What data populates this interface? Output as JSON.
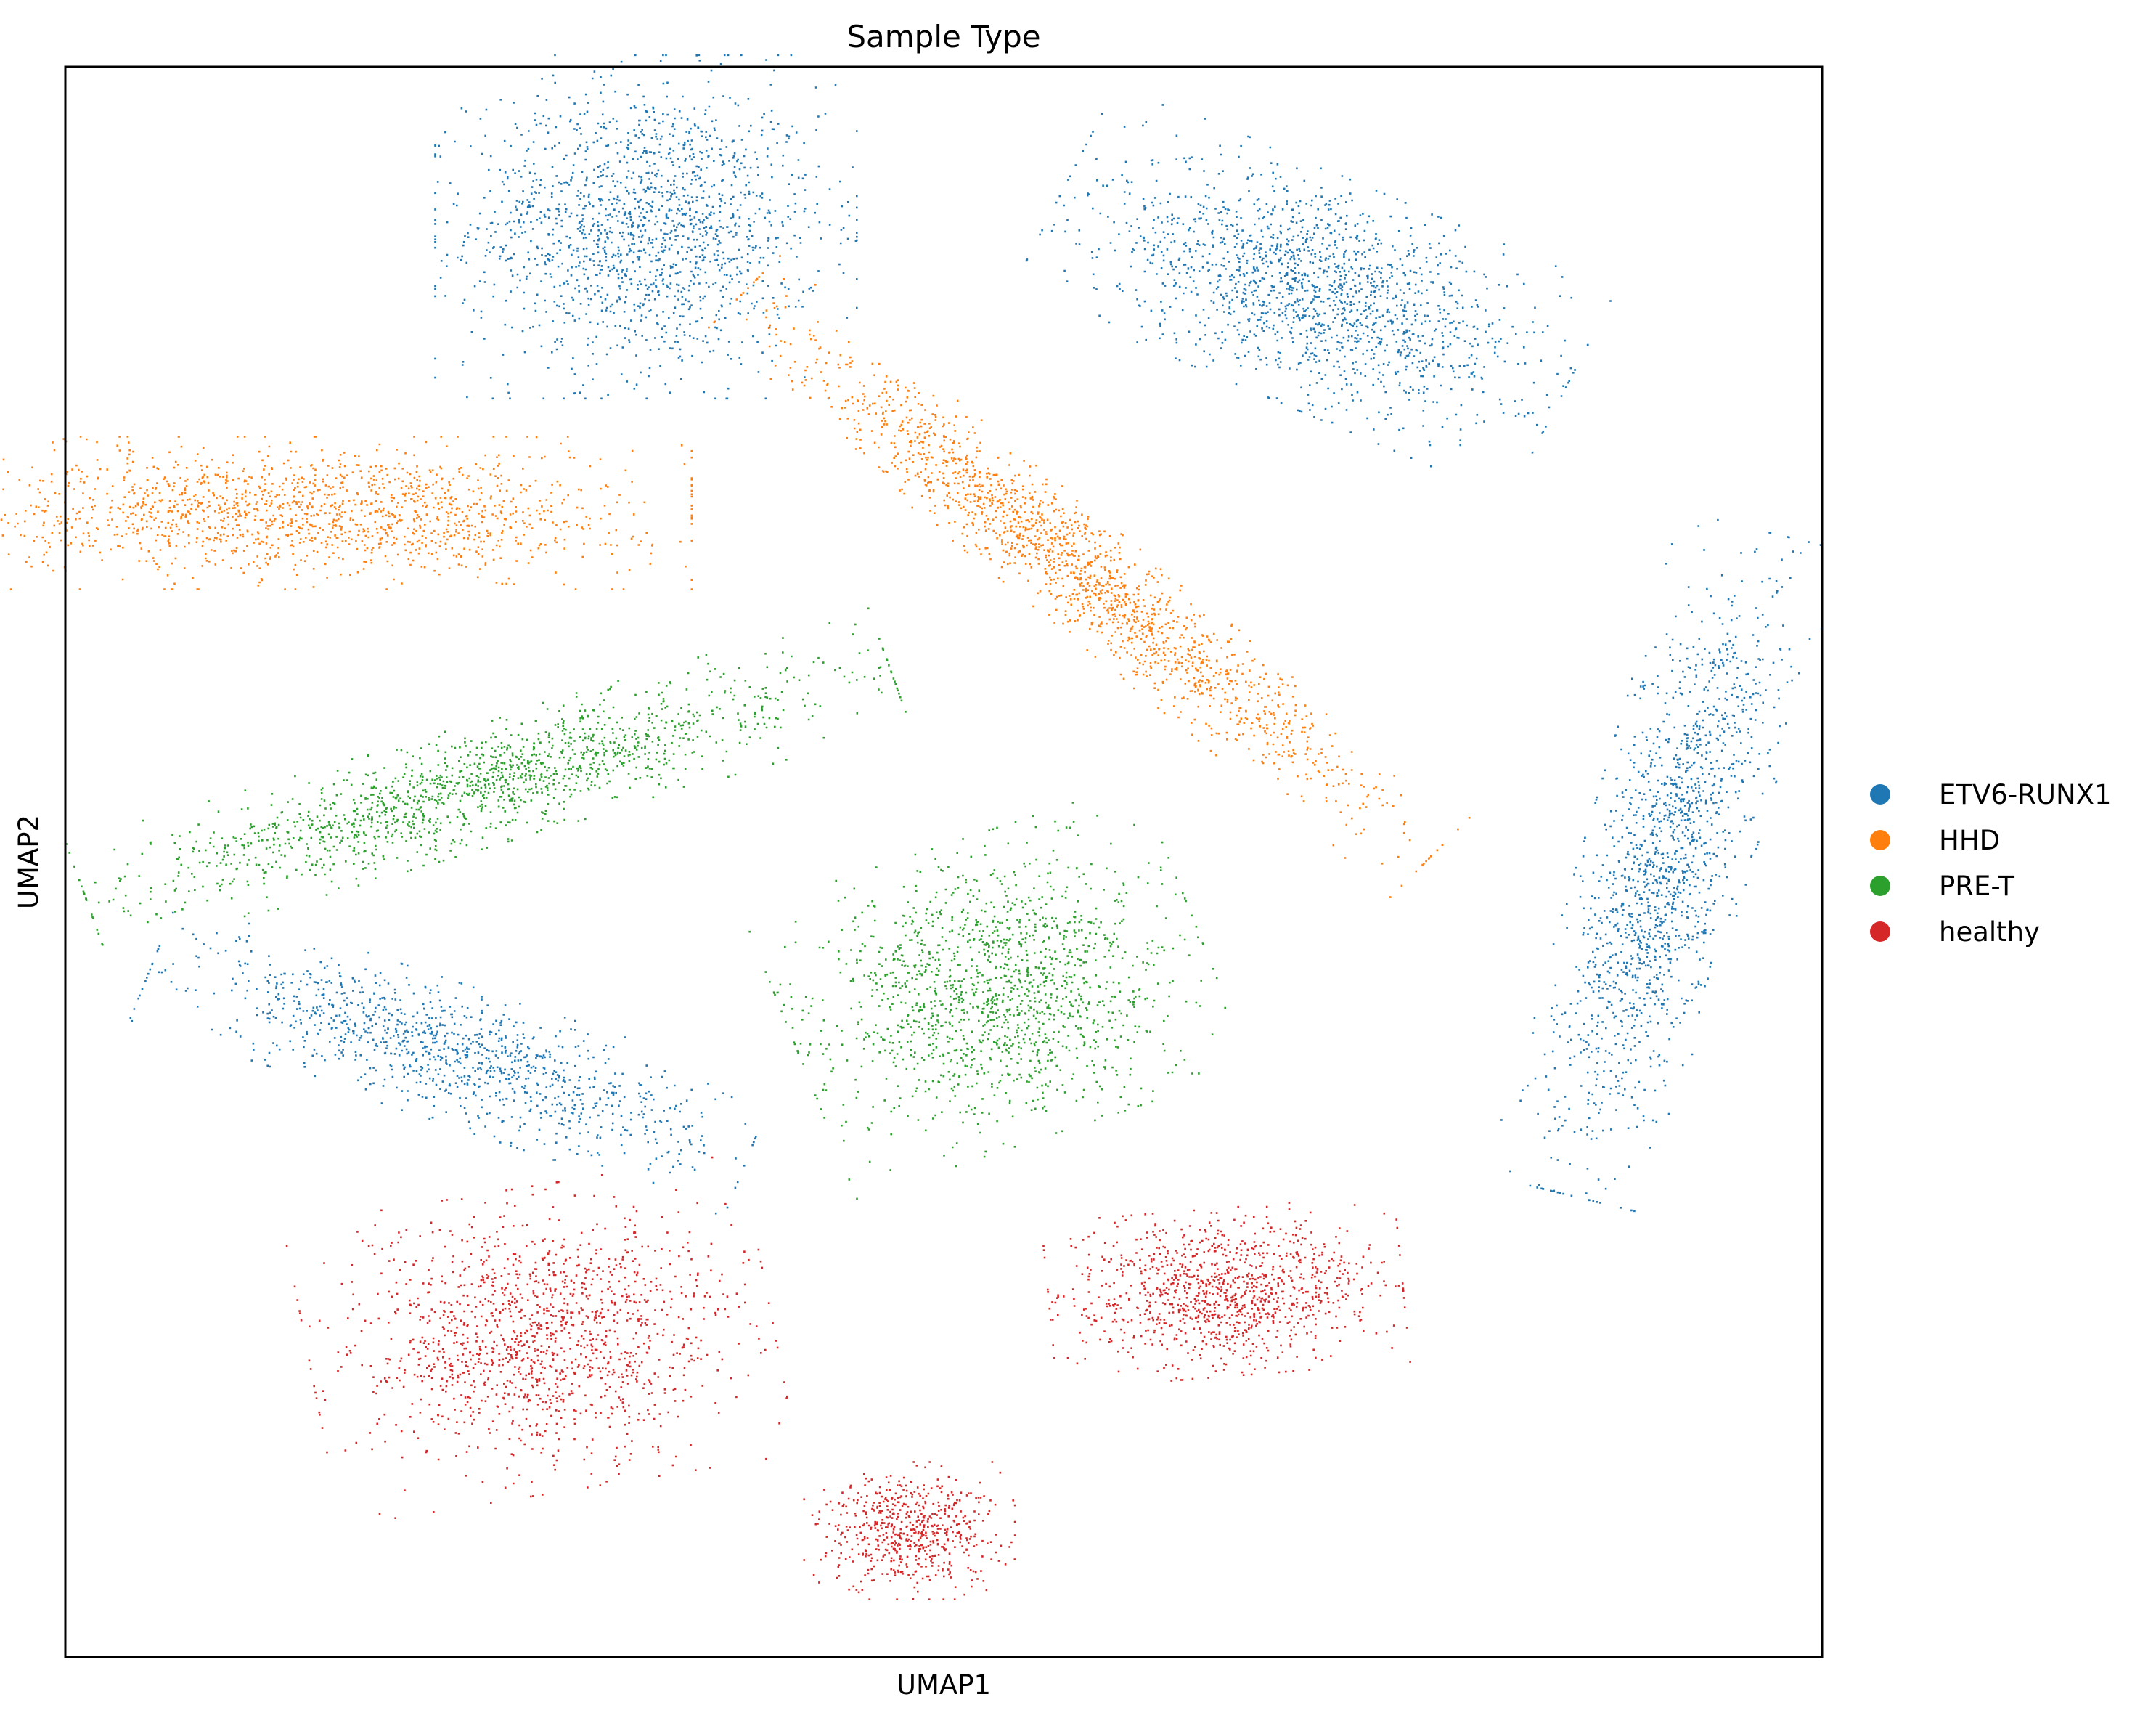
{
  "chart_data": {
    "type": "scatter",
    "title": "Sample Type",
    "xlabel": "UMAP1",
    "ylabel": "UMAP2",
    "xlim": [
      0,
      1
    ],
    "ylim": [
      0,
      1
    ],
    "ticks": false,
    "grid": false,
    "legend_position": "right",
    "series": [
      {
        "name": "ETV6-RUNX1",
        "color": "#1f77b4",
        "clusters": [
          {
            "center": [
              0.33,
              0.9
            ],
            "spread": [
              0.05,
              0.045
            ],
            "angle": 0,
            "density": 1600
          },
          {
            "center": [
              0.71,
              0.86
            ],
            "spread": [
              0.065,
              0.03
            ],
            "angle": -25,
            "density": 1600
          },
          {
            "center": [
              0.22,
              0.38
            ],
            "spread": [
              0.075,
              0.018
            ],
            "angle": -20,
            "density": 1100
          },
          {
            "center": [
              0.91,
              0.5
            ],
            "spread": [
              0.02,
              0.09
            ],
            "angle": -15,
            "density": 1500
          }
        ]
      },
      {
        "name": "HHD",
        "color": "#ff7f0e",
        "clusters": [
          {
            "center": [
              0.14,
              0.72
            ],
            "spread": [
              0.09,
              0.02
            ],
            "angle": 0,
            "density": 1500
          },
          {
            "center": [
              0.58,
              0.68
            ],
            "spread": [
              0.11,
              0.014
            ],
            "angle": -42,
            "density": 1700
          }
        ]
      },
      {
        "name": "PRE-T",
        "color": "#2ca02c",
        "clusters": [
          {
            "center": [
              0.24,
              0.55
            ],
            "spread": [
              0.1,
              0.016
            ],
            "angle": 18,
            "density": 1500
          },
          {
            "center": [
              0.53,
              0.42
            ],
            "spread": [
              0.05,
              0.04
            ],
            "angle": 20,
            "density": 1500
          }
        ]
      },
      {
        "name": "healthy",
        "color": "#d62728",
        "clusters": [
          {
            "center": [
              0.27,
              0.2
            ],
            "spread": [
              0.055,
              0.04
            ],
            "angle": 10,
            "density": 1400
          },
          {
            "center": [
              0.66,
              0.23
            ],
            "spread": [
              0.042,
              0.022
            ],
            "angle": 5,
            "density": 1100
          },
          {
            "center": [
              0.48,
              0.08
            ],
            "spread": [
              0.025,
              0.018
            ],
            "angle": 0,
            "density": 600
          }
        ]
      }
    ]
  }
}
